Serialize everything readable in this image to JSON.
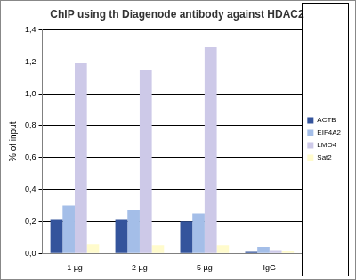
{
  "chart_data": {
    "type": "bar",
    "title": "ChIP using th Diagenode antibody against HDAC2",
    "y_label": "% of input",
    "categories": [
      "1 µg",
      "2 µg",
      "5 µg",
      "IgG"
    ],
    "series": [
      {
        "name": "ACTB",
        "color": "#34549c",
        "values": [
          0.21,
          0.21,
          0.2,
          0.01
        ]
      },
      {
        "name": "EIF4A2",
        "color": "#a4bee8",
        "values": [
          0.3,
          0.27,
          0.25,
          0.04
        ]
      },
      {
        "name": "LMO4",
        "color": "#cdc9e8",
        "values": [
          1.19,
          1.15,
          1.29,
          0.02
        ]
      },
      {
        "name": "Sat2",
        "color": "#fffbcc",
        "values": [
          0.055,
          0.05,
          0.05,
          0.015
        ]
      }
    ],
    "ylim": [
      0,
      1.4
    ],
    "yticks": [
      {
        "value": 0,
        "label": "0,0"
      },
      {
        "value": 0.2,
        "label": "0,2"
      },
      {
        "value": 0.4,
        "label": "0,4"
      },
      {
        "value": 0.6,
        "label": "0,6"
      },
      {
        "value": 0.8,
        "label": "0,8"
      },
      {
        "value": 1.0,
        "label": "1,0"
      },
      {
        "value": 1.2,
        "label": "1,2"
      },
      {
        "value": 1.4,
        "label": "1,4"
      }
    ],
    "grid": true,
    "legend": "right"
  }
}
